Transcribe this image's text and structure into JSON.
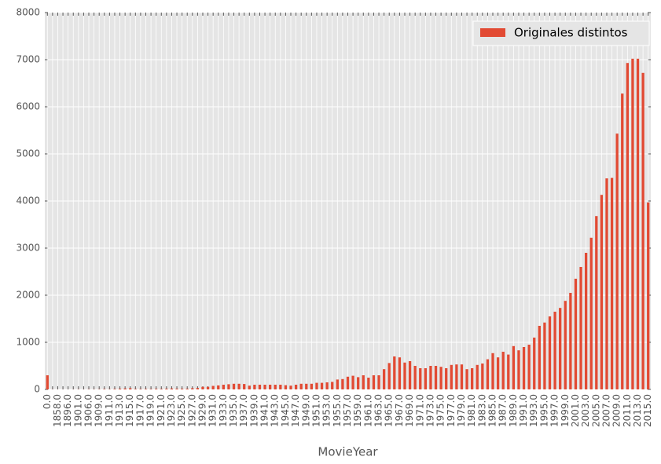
{
  "chart_data": {
    "type": "bar",
    "x_label": "MovieYear",
    "categories": [
      "0.0",
      null,
      "1858.0",
      null,
      "1896.0",
      null,
      "1901.0",
      null,
      "1906.0",
      null,
      "1909.0",
      null,
      "1911.0",
      null,
      "1913.0",
      null,
      "1915.0",
      null,
      "1917.0",
      null,
      "1919.0",
      null,
      "1921.0",
      null,
      "1923.0",
      null,
      "1925.0",
      null,
      "1927.0",
      null,
      "1929.0",
      null,
      "1931.0",
      null,
      "1933.0",
      null,
      "1935.0",
      null,
      "1937.0",
      null,
      "1939.0",
      null,
      "1941.0",
      null,
      "1943.0",
      null,
      "1945.0",
      null,
      "1947.0",
      null,
      "1949.0",
      null,
      "1951.0",
      null,
      "1953.0",
      null,
      "1955.0",
      null,
      "1957.0",
      null,
      "1959.0",
      null,
      "1961.0",
      null,
      "1963.0",
      null,
      "1965.0",
      null,
      "1967.0",
      null,
      "1969.0",
      null,
      "1971.0",
      null,
      "1973.0",
      null,
      "1975.0",
      null,
      "1977.0",
      null,
      "1979.0",
      null,
      "1981.0",
      null,
      "1983.0",
      null,
      "1985.0",
      null,
      "1987.0",
      null,
      "1989.0",
      null,
      "1991.0",
      null,
      "1993.0",
      null,
      "1995.0",
      null,
      "1997.0",
      null,
      "1999.0",
      null,
      "2001.0",
      null,
      "2003.0",
      null,
      "2005.0",
      null,
      "2007.0",
      null,
      "2009.0",
      null,
      "2011.0",
      null,
      "2013.0",
      null,
      "2015.0"
    ],
    "series": [
      {
        "name": "Originales distintos",
        "color": "#E24A33",
        "values": [
          300,
          2,
          1,
          1,
          1,
          2,
          3,
          2,
          4,
          3,
          5,
          8,
          5,
          10,
          15,
          20,
          25,
          10,
          8,
          10,
          8,
          12,
          10,
          15,
          20,
          15,
          15,
          15,
          25,
          30,
          55,
          55,
          75,
          85,
          100,
          110,
          120,
          120,
          115,
          80,
          100,
          100,
          100,
          100,
          100,
          100,
          90,
          80,
          100,
          120,
          120,
          120,
          140,
          140,
          150,
          160,
          210,
          220,
          270,
          290,
          260,
          300,
          250,
          300,
          300,
          430,
          560,
          700,
          680,
          570,
          600,
          500,
          450,
          450,
          500,
          500,
          480,
          450,
          520,
          530,
          530,
          430,
          450,
          520,
          550,
          640,
          770,
          680,
          800,
          740,
          920,
          830,
          900,
          950,
          1100,
          1350,
          1420,
          1550,
          1650,
          1730,
          1880,
          2050,
          2350,
          2600,
          2900,
          3220,
          3680,
          4130,
          4480,
          4490,
          5430,
          6280,
          6930,
          7020,
          7020,
          6720,
          3970
        ]
      }
    ],
    "ylim": [
      0,
      8000
    ],
    "yticks": [
      0,
      1000,
      2000,
      3000,
      4000,
      5000,
      6000,
      7000,
      8000
    ],
    "grid": true,
    "legend": "upper right"
  }
}
